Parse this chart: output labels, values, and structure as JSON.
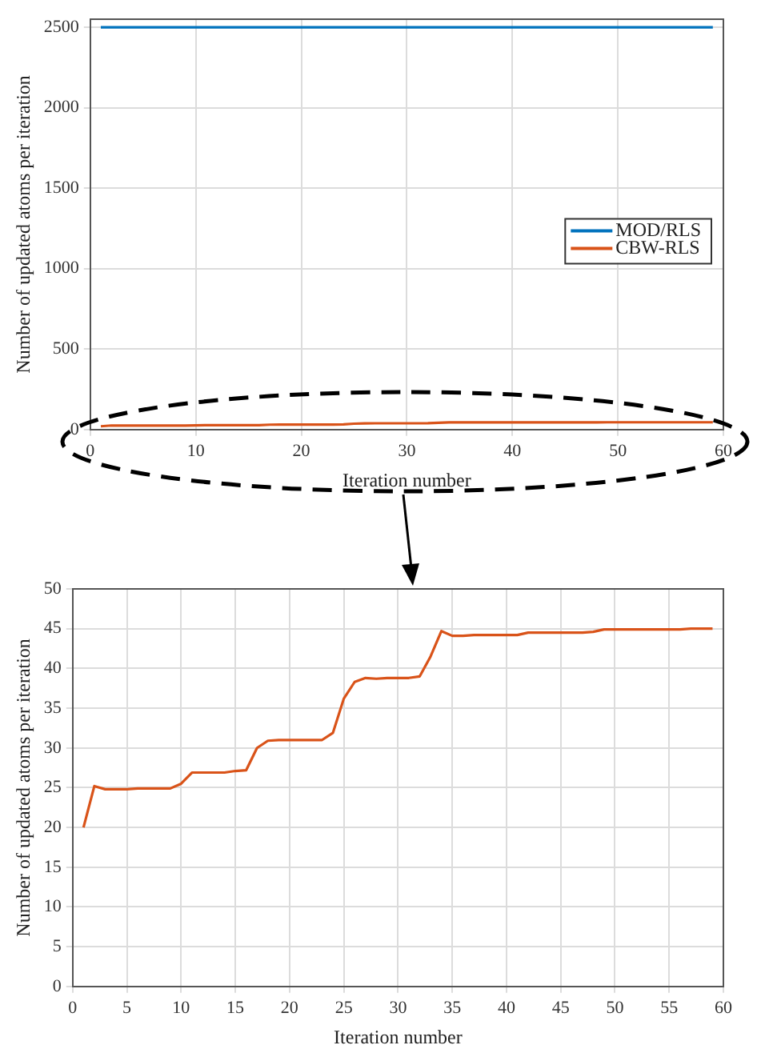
{
  "chart_data": [
    {
      "type": "line",
      "xlabel": "Iteration number",
      "ylabel": "Number of updated atoms per iteration",
      "xlim": [
        0,
        60
      ],
      "xticks": [
        0,
        10,
        20,
        30,
        40,
        50,
        60
      ],
      "ylim": [
        0,
        2550
      ],
      "yticks": [
        0,
        500,
        1000,
        1500,
        2000,
        2500
      ],
      "grid": true,
      "legend": "right",
      "marker": "none",
      "line_style": "solid",
      "x": [
        1,
        2,
        3,
        4,
        5,
        6,
        7,
        8,
        9,
        10,
        11,
        12,
        13,
        14,
        15,
        16,
        17,
        18,
        19,
        20,
        21,
        22,
        23,
        24,
        25,
        26,
        27,
        28,
        29,
        30,
        31,
        32,
        33,
        34,
        35,
        36,
        37,
        38,
        39,
        40,
        41,
        42,
        43,
        44,
        45,
        46,
        47,
        48,
        49,
        50,
        51,
        52,
        53,
        54,
        55,
        56,
        57,
        58,
        59
      ],
      "series": [
        {
          "name": "MOD/RLS",
          "color": "#0072bd",
          "values": [
            2500,
            2500,
            2500,
            2500,
            2500,
            2500,
            2500,
            2500,
            2500,
            2500,
            2500,
            2500,
            2500,
            2500,
            2500,
            2500,
            2500,
            2500,
            2500,
            2500,
            2500,
            2500,
            2500,
            2500,
            2500,
            2500,
            2500,
            2500,
            2500,
            2500,
            2500,
            2500,
            2500,
            2500,
            2500,
            2500,
            2500,
            2500,
            2500,
            2500,
            2500,
            2500,
            2500,
            2500,
            2500,
            2500,
            2500,
            2500,
            2500,
            2500,
            2500,
            2500,
            2500,
            2500,
            2500,
            2500,
            2500,
            2500,
            2500
          ]
        },
        {
          "name": "CBW-RLS",
          "color": "#d95319",
          "values": [
            20,
            25.2,
            24.8,
            24.8,
            24.8,
            24.9,
            24.9,
            24.9,
            24.9,
            25.5,
            26.9,
            26.9,
            26.9,
            26.9,
            27.1,
            27.2,
            30,
            30.9,
            31,
            31,
            31,
            31,
            31,
            31.9,
            36.2,
            38.3,
            38.8,
            38.7,
            38.8,
            38.8,
            38.8,
            39,
            41.5,
            44.7,
            44.1,
            44.1,
            44.2,
            44.2,
            44.2,
            44.2,
            44.2,
            44.5,
            44.5,
            44.5,
            44.5,
            44.5,
            44.5,
            44.6,
            44.9,
            44.9,
            44.9,
            44.9,
            44.9,
            44.9,
            44.9,
            44.9,
            45,
            45,
            45
          ]
        }
      ]
    },
    {
      "type": "line",
      "xlabel": "Iteration number",
      "ylabel": "Number of updated atoms per iteration",
      "xlim": [
        0,
        60
      ],
      "xticks": [
        0,
        5,
        10,
        15,
        20,
        25,
        30,
        35,
        40,
        45,
        50,
        55,
        60
      ],
      "ylim": [
        0,
        50
      ],
      "yticks": [
        0,
        5,
        10,
        15,
        20,
        25,
        30,
        35,
        40,
        45,
        50
      ],
      "grid": true,
      "marker": "none",
      "line_style": "solid",
      "x": [
        1,
        2,
        3,
        4,
        5,
        6,
        7,
        8,
        9,
        10,
        11,
        12,
        13,
        14,
        15,
        16,
        17,
        18,
        19,
        20,
        21,
        22,
        23,
        24,
        25,
        26,
        27,
        28,
        29,
        30,
        31,
        32,
        33,
        34,
        35,
        36,
        37,
        38,
        39,
        40,
        41,
        42,
        43,
        44,
        45,
        46,
        47,
        48,
        49,
        50,
        51,
        52,
        53,
        54,
        55,
        56,
        57,
        58,
        59
      ],
      "series": [
        {
          "color": "#d95319",
          "values": [
            20,
            25.2,
            24.8,
            24.8,
            24.8,
            24.9,
            24.9,
            24.9,
            24.9,
            25.5,
            26.9,
            26.9,
            26.9,
            26.9,
            27.1,
            27.2,
            30,
            30.9,
            31,
            31,
            31,
            31,
            31,
            31.9,
            36.2,
            38.3,
            38.8,
            38.7,
            38.8,
            38.8,
            38.8,
            39,
            41.5,
            44.7,
            44.1,
            44.1,
            44.2,
            44.2,
            44.2,
            44.2,
            44.2,
            44.5,
            44.5,
            44.5,
            44.5,
            44.5,
            44.5,
            44.6,
            44.9,
            44.9,
            44.9,
            44.9,
            44.9,
            44.9,
            44.9,
            44.9,
            45,
            45,
            45
          ]
        }
      ]
    }
  ]
}
